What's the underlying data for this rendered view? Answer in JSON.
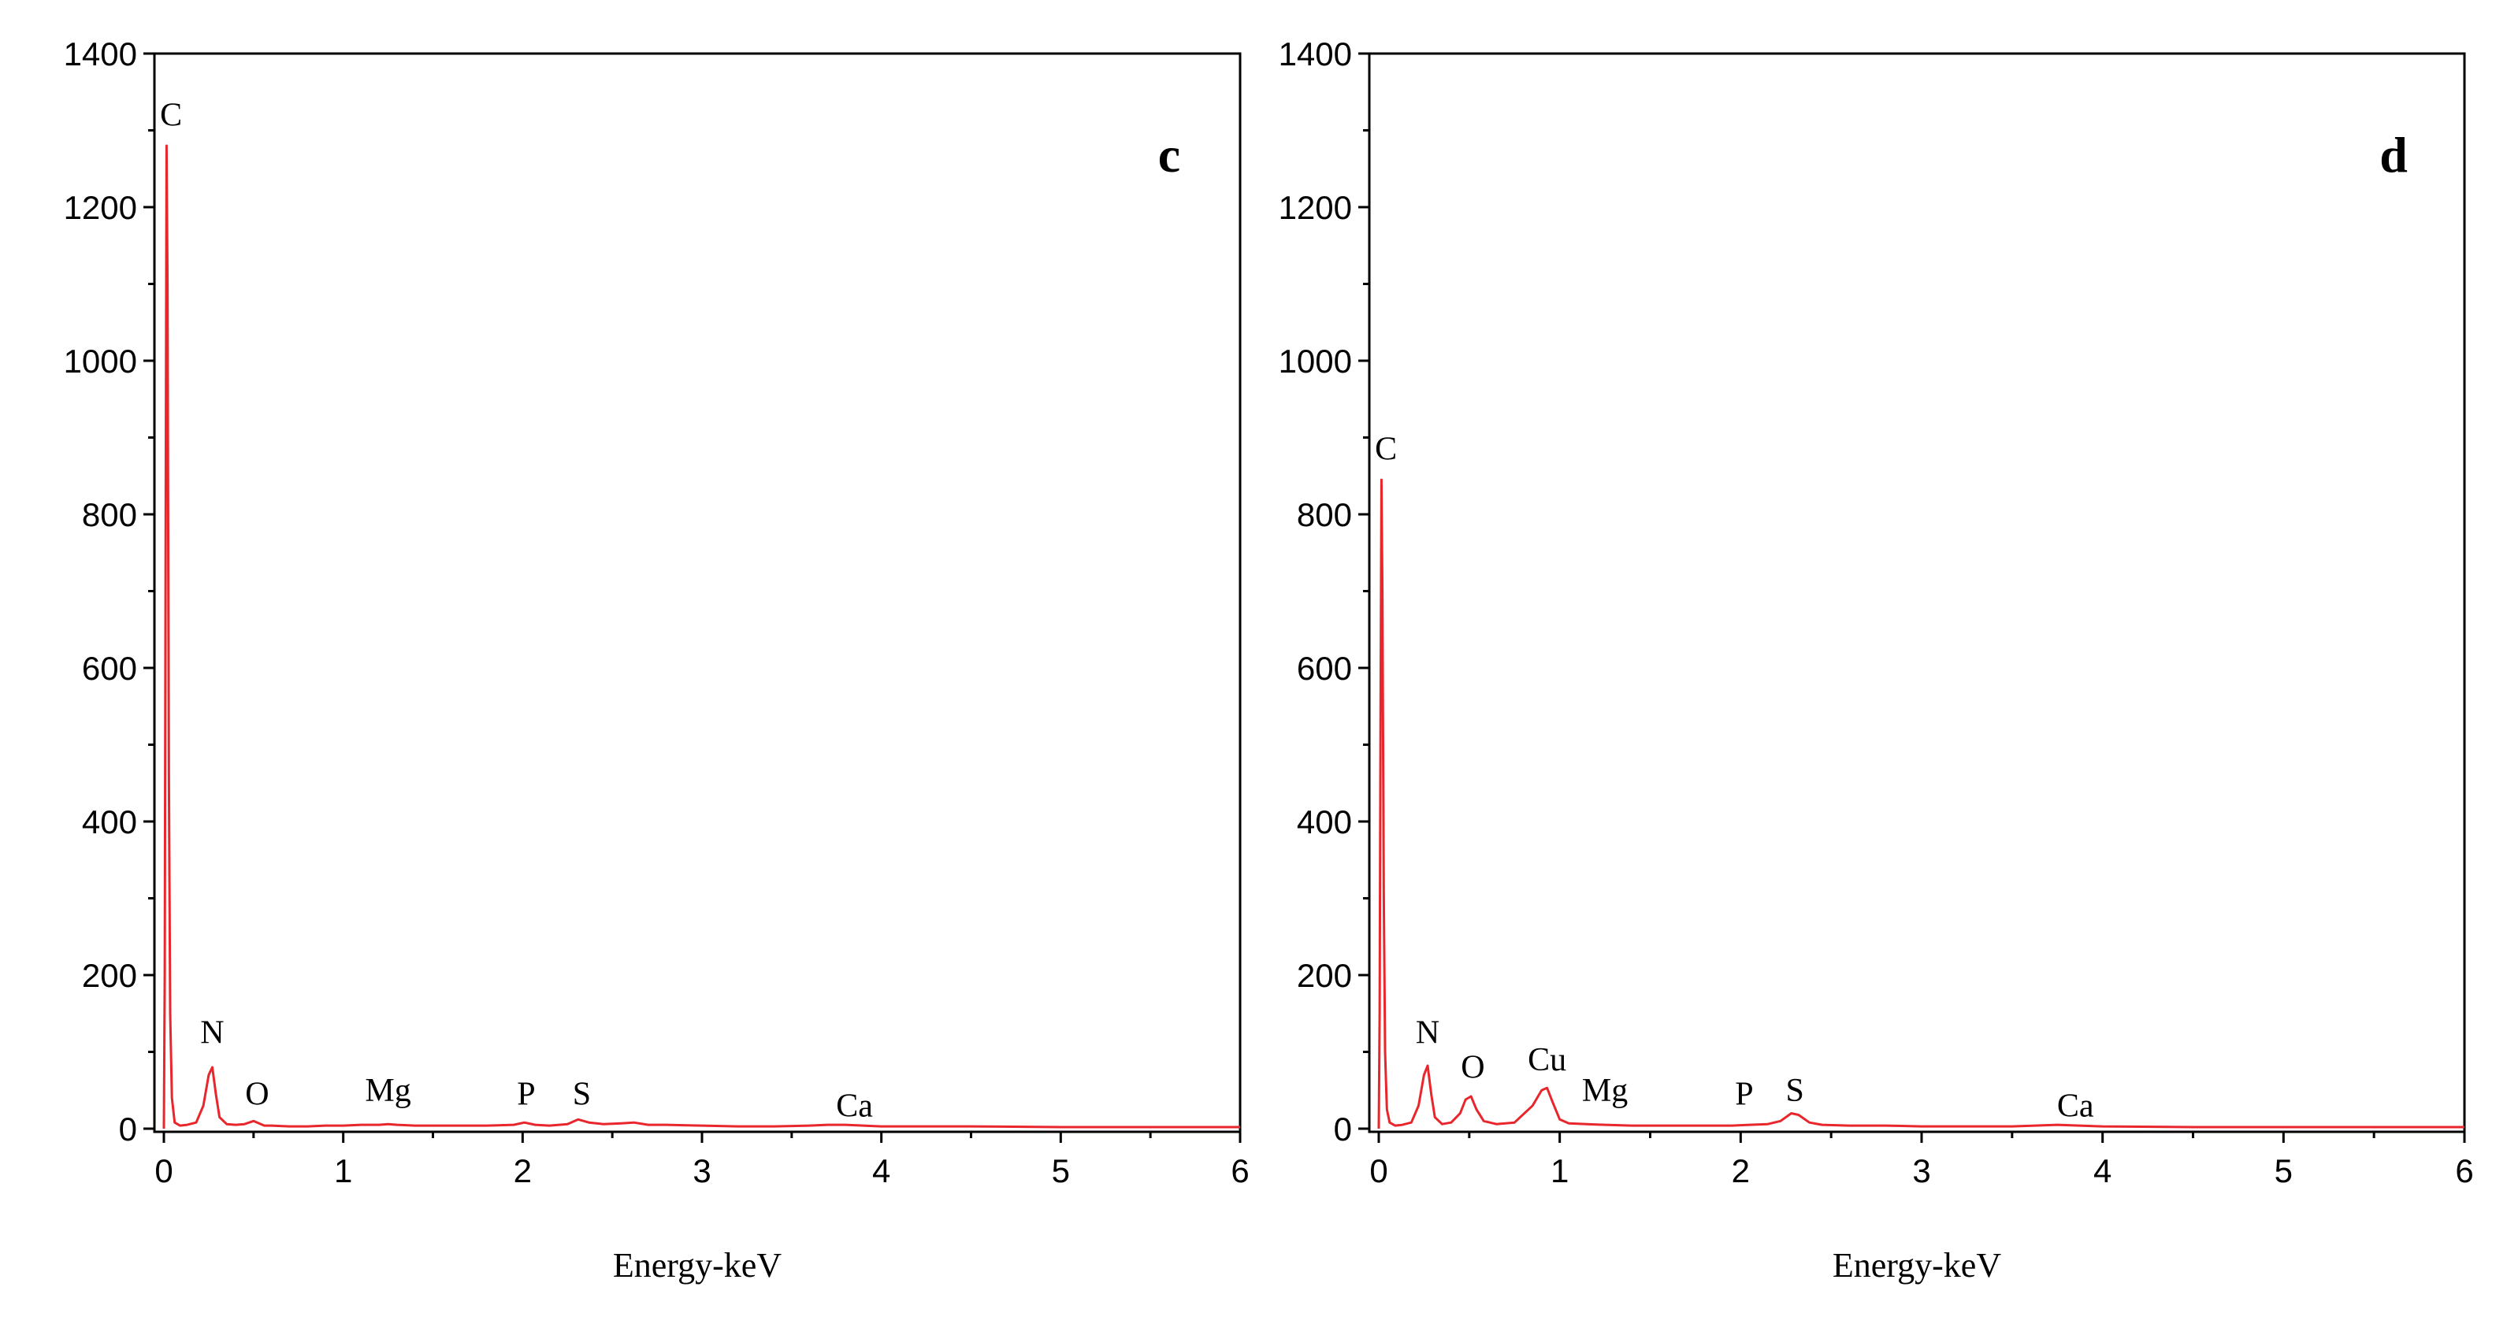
{
  "chart_data": [
    {
      "type": "line",
      "panel_label": "c",
      "xlabel": "Energy-keV",
      "ylabel": "",
      "xlim": [
        0,
        6
      ],
      "ylim": [
        0,
        1400
      ],
      "xticks": [
        "0",
        "1",
        "2",
        "3",
        "4",
        "5",
        "6"
      ],
      "yticks": [
        "0",
        "200",
        "400",
        "600",
        "800",
        "1000",
        "1200",
        "1400"
      ],
      "grid": false,
      "color": "#e8262c",
      "series": [
        {
          "x": [
            0.0,
            0.005,
            0.01,
            0.015,
            0.02,
            0.028,
            0.035,
            0.045,
            0.06,
            0.09,
            0.13,
            0.18,
            0.22,
            0.25,
            0.27,
            0.29,
            0.31,
            0.35,
            0.4,
            0.45,
            0.5,
            0.53,
            0.56,
            0.6,
            0.7,
            0.8,
            0.9,
            1.0,
            1.1,
            1.2,
            1.25,
            1.3,
            1.4,
            1.6,
            1.8,
            1.95,
            2.01,
            2.07,
            2.15,
            2.25,
            2.31,
            2.37,
            2.45,
            2.55,
            2.62,
            2.7,
            2.8,
            3.0,
            3.2,
            3.4,
            3.6,
            3.7,
            3.8,
            3.9,
            4.0,
            4.5,
            5.0,
            5.5,
            6.0
          ],
          "y": [
            0,
            200,
            800,
            1280,
            1100,
            450,
            150,
            40,
            8,
            4,
            5,
            8,
            30,
            70,
            80,
            45,
            15,
            6,
            5,
            6,
            10,
            7,
            4,
            4,
            3,
            3,
            4,
            4,
            5,
            5,
            6,
            5,
            4,
            4,
            4,
            5,
            8,
            5,
            4,
            6,
            12,
            8,
            6,
            7,
            8,
            5,
            5,
            4,
            3,
            3,
            4,
            5,
            5,
            4,
            3,
            3,
            2,
            2,
            2
          ]
        }
      ],
      "annotations": [
        {
          "text": "C",
          "x": 0.04,
          "y": 1300
        },
        {
          "text": "N",
          "x": 0.27,
          "y": 105
        },
        {
          "text": "O",
          "x": 0.52,
          "y": 25
        },
        {
          "text": "Mg",
          "x": 1.25,
          "y": 30
        },
        {
          "text": "P",
          "x": 2.02,
          "y": 25
        },
        {
          "text": "S",
          "x": 2.33,
          "y": 25
        },
        {
          "text": "Ca",
          "x": 3.85,
          "y": 10
        }
      ]
    },
    {
      "type": "line",
      "panel_label": "d",
      "xlabel": "Energy-keV",
      "ylabel": "",
      "xlim": [
        0,
        6
      ],
      "ylim": [
        0,
        1400
      ],
      "xticks": [
        "0",
        "1",
        "2",
        "3",
        "4",
        "5",
        "6"
      ],
      "yticks": [
        "0",
        "200",
        "400",
        "600",
        "800",
        "1000",
        "1200",
        "1400"
      ],
      "grid": false,
      "color": "#e8262c",
      "series": [
        {
          "x": [
            0.0,
            0.005,
            0.01,
            0.015,
            0.02,
            0.028,
            0.035,
            0.045,
            0.06,
            0.09,
            0.13,
            0.18,
            0.22,
            0.25,
            0.27,
            0.29,
            0.31,
            0.35,
            0.4,
            0.45,
            0.48,
            0.51,
            0.54,
            0.58,
            0.65,
            0.75,
            0.85,
            0.9,
            0.93,
            0.96,
            1.0,
            1.05,
            1.15,
            1.25,
            1.4,
            1.6,
            1.8,
            1.95,
            2.05,
            2.15,
            2.22,
            2.28,
            2.32,
            2.38,
            2.45,
            2.6,
            2.8,
            3.0,
            3.2,
            3.5,
            3.75,
            4.0,
            4.5,
            5.0,
            5.5,
            6.0
          ],
          "y": [
            0,
            150,
            550,
            845,
            700,
            300,
            100,
            25,
            8,
            4,
            5,
            8,
            30,
            70,
            82,
            45,
            15,
            6,
            8,
            20,
            38,
            42,
            25,
            10,
            6,
            8,
            30,
            50,
            53,
            35,
            12,
            7,
            6,
            5,
            4,
            4,
            4,
            4,
            5,
            6,
            10,
            20,
            18,
            8,
            5,
            4,
            4,
            3,
            3,
            3,
            5,
            3,
            2,
            2,
            2,
            2
          ]
        }
      ],
      "annotations": [
        {
          "text": "C",
          "x": 0.04,
          "y": 865
        },
        {
          "text": "N",
          "x": 0.27,
          "y": 105
        },
        {
          "text": "O",
          "x": 0.52,
          "y": 60
        },
        {
          "text": "Cu",
          "x": 0.93,
          "y": 70
        },
        {
          "text": "Mg",
          "x": 1.25,
          "y": 30
        },
        {
          "text": "P",
          "x": 2.02,
          "y": 25
        },
        {
          "text": "S",
          "x": 2.3,
          "y": 30
        },
        {
          "text": "Ca",
          "x": 3.85,
          "y": 10
        }
      ]
    }
  ]
}
